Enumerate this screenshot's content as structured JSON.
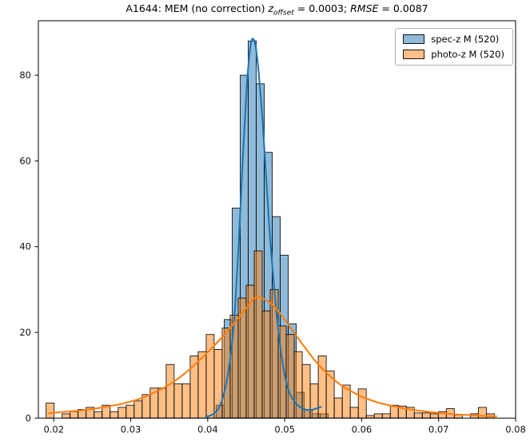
{
  "title": {
    "text": "A1644: MEM (no correction) z_offset = 0.0003; RMSE = 0.0087",
    "prefix": "A1644: MEM (no correction) ",
    "z_var": "z",
    "z_sub": "offset",
    "z_value": " = 0.0003; ",
    "rmse_var": "RMSE",
    "rmse_value": " = 0.0087"
  },
  "legend": {
    "items": [
      {
        "label": "spec-z M (520)",
        "color": "#1f77b4"
      },
      {
        "label": "photo-z M (520)",
        "color": "#ff7f0e"
      }
    ]
  },
  "chart_data": {
    "type": "bar",
    "subtype": "overlaid-histograms-with-kde",
    "title": "A1644: MEM (no correction) z_offset = 0.0003; RMSE = 0.0087",
    "xlabel": "",
    "ylabel": "",
    "xlim": [
      0.018,
      0.08
    ],
    "ylim": [
      0,
      92.7
    ],
    "xticks": [
      0.02,
      0.03,
      0.04,
      0.05,
      0.06,
      0.07,
      0.08
    ],
    "yticks": [
      0,
      20,
      40,
      60,
      80
    ],
    "grid": false,
    "legend_position": "upper right",
    "series": [
      {
        "name": "spec-z M (520)",
        "color": "#1f77b4",
        "fill_alpha": 0.5,
        "bin_start": 0.0411,
        "bin_width": 0.00104,
        "counts": [
          3,
          23,
          49,
          80,
          88,
          78,
          62,
          47,
          38,
          22,
          6,
          2,
          1,
          1
        ],
        "kde": [
          [
            0.0398,
            0.3
          ],
          [
            0.0406,
            0.8
          ],
          [
            0.0413,
            2
          ],
          [
            0.042,
            5
          ],
          [
            0.0427,
            11
          ],
          [
            0.0434,
            22
          ],
          [
            0.044,
            40
          ],
          [
            0.0446,
            62
          ],
          [
            0.0451,
            78
          ],
          [
            0.0455,
            86
          ],
          [
            0.0458,
            88.5
          ],
          [
            0.0462,
            87
          ],
          [
            0.0466,
            81
          ],
          [
            0.0471,
            70
          ],
          [
            0.0476,
            56
          ],
          [
            0.0481,
            42
          ],
          [
            0.0487,
            29
          ],
          [
            0.0493,
            18.5
          ],
          [
            0.0499,
            11
          ],
          [
            0.0505,
            6.5
          ],
          [
            0.0512,
            4
          ],
          [
            0.0519,
            2.7
          ],
          [
            0.0527,
            2
          ],
          [
            0.0535,
            1.9
          ],
          [
            0.0542,
            2.3
          ],
          [
            0.0547,
            2.6
          ]
        ]
      },
      {
        "name": "photo-z M (520)",
        "color": "#ff7f0e",
        "fill_alpha": 0.5,
        "bin_start": 0.019,
        "bin_width": 0.00104,
        "counts": [
          3.5,
          0,
          1,
          1.5,
          2,
          2.5,
          1.5,
          3,
          1.5,
          2.5,
          3,
          4,
          5.5,
          7,
          7,
          12.5,
          8,
          8,
          14.5,
          15.5,
          19.5,
          16,
          21,
          24,
          28,
          31,
          39,
          25,
          30,
          21.5,
          19.5,
          15.5,
          12.5,
          8,
          14.5,
          11,
          4.7,
          7.7,
          2.5,
          6.8,
          0.6,
          1,
          1,
          3,
          2.8,
          2.5,
          1.2,
          1.2,
          1,
          1.5,
          2.2,
          0.7,
          0,
          1,
          2.5,
          1,
          0
        ],
        "kde": [
          [
            0.0193,
            1.1
          ],
          [
            0.021,
            1.4
          ],
          [
            0.023,
            1.7
          ],
          [
            0.025,
            2.1
          ],
          [
            0.027,
            2.7
          ],
          [
            0.029,
            3.4
          ],
          [
            0.031,
            4.4
          ],
          [
            0.033,
            5.9
          ],
          [
            0.035,
            7.8
          ],
          [
            0.037,
            10.4
          ],
          [
            0.039,
            13.6
          ],
          [
            0.041,
            17.2
          ],
          [
            0.043,
            21.2
          ],
          [
            0.0445,
            24.6
          ],
          [
            0.0455,
            26.8
          ],
          [
            0.046,
            27.9
          ],
          [
            0.0465,
            28.2
          ],
          [
            0.047,
            28
          ],
          [
            0.048,
            27
          ],
          [
            0.049,
            25.3
          ],
          [
            0.05,
            23
          ],
          [
            0.051,
            20.5
          ],
          [
            0.052,
            18
          ],
          [
            0.053,
            15.6
          ],
          [
            0.054,
            13.3
          ],
          [
            0.055,
            11.3
          ],
          [
            0.056,
            9.6
          ],
          [
            0.057,
            8.1
          ],
          [
            0.058,
            6.9
          ],
          [
            0.059,
            5.9
          ],
          [
            0.06,
            5
          ],
          [
            0.062,
            3.7
          ],
          [
            0.064,
            2.8
          ],
          [
            0.066,
            2.1
          ],
          [
            0.068,
            1.6
          ],
          [
            0.07,
            1.2
          ],
          [
            0.072,
            0.9
          ],
          [
            0.074,
            0.7
          ],
          [
            0.076,
            0.5
          ],
          [
            0.0775,
            0.4
          ]
        ]
      }
    ]
  }
}
